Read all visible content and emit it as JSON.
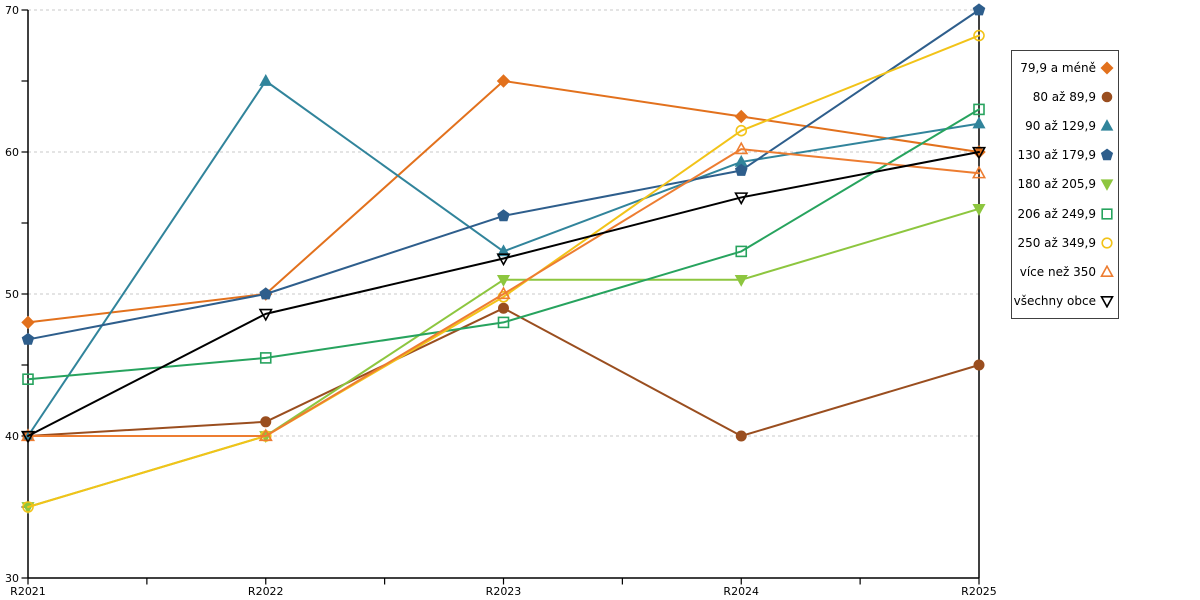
{
  "chart_data": {
    "type": "line",
    "title": "",
    "xlabel": "",
    "ylabel": "",
    "categories": [
      "R2021",
      "R2022",
      "R2023",
      "R2024",
      "R2025"
    ],
    "y_axis": {
      "min": 30,
      "max": 70,
      "major_tick": 10,
      "minor_tick": 5
    },
    "x_axis": {
      "minor_ticks_between_categories": true
    },
    "grid": "horizontal-dashed",
    "legend_position": "right",
    "colors": {
      "grid": "#C9C9C9",
      "axis": "#000000",
      "background": "#FFFFFF",
      "legend_border": "#404040"
    },
    "series": [
      {
        "name": "79,9 a méně",
        "color": "#E2711D",
        "marker": "diamond",
        "fill": "filled",
        "values": [
          48,
          50,
          65,
          62.5,
          60
        ]
      },
      {
        "name": "80 až 89,9",
        "color": "#9A4E1F",
        "marker": "circle",
        "fill": "filled",
        "values": [
          40,
          41,
          49,
          40,
          45
        ]
      },
      {
        "name": "90 až 129,9",
        "color": "#31849B",
        "marker": "triangle-up",
        "fill": "filled",
        "values": [
          40,
          65,
          53,
          59.3,
          62
        ]
      },
      {
        "name": "130 až 179,9",
        "color": "#2E5E8C",
        "marker": "pentagon",
        "fill": "filled",
        "values": [
          46.8,
          50,
          55.5,
          58.7,
          70
        ]
      },
      {
        "name": "180 až 205,9",
        "color": "#8DC63F",
        "marker": "triangle-down",
        "fill": "filled",
        "values": [
          35,
          40,
          51,
          51,
          56
        ]
      },
      {
        "name": "206 až 249,9",
        "color": "#27A35E",
        "marker": "square",
        "fill": "open",
        "values": [
          44,
          45.5,
          48,
          53,
          63
        ]
      },
      {
        "name": "250 až 349,9",
        "color": "#F2C318",
        "marker": "circle",
        "fill": "open",
        "values": [
          35,
          40,
          49.8,
          61.5,
          68.2
        ]
      },
      {
        "name": "více než 350",
        "color": "#ED7D31",
        "marker": "triangle-up",
        "fill": "open",
        "values": [
          40,
          40,
          50,
          60.2,
          58.5
        ]
      },
      {
        "name": "všechny obce",
        "color": "#000000",
        "marker": "triangle-down",
        "fill": "open",
        "values": [
          40,
          48.6,
          52.5,
          56.8,
          60
        ]
      }
    ]
  }
}
